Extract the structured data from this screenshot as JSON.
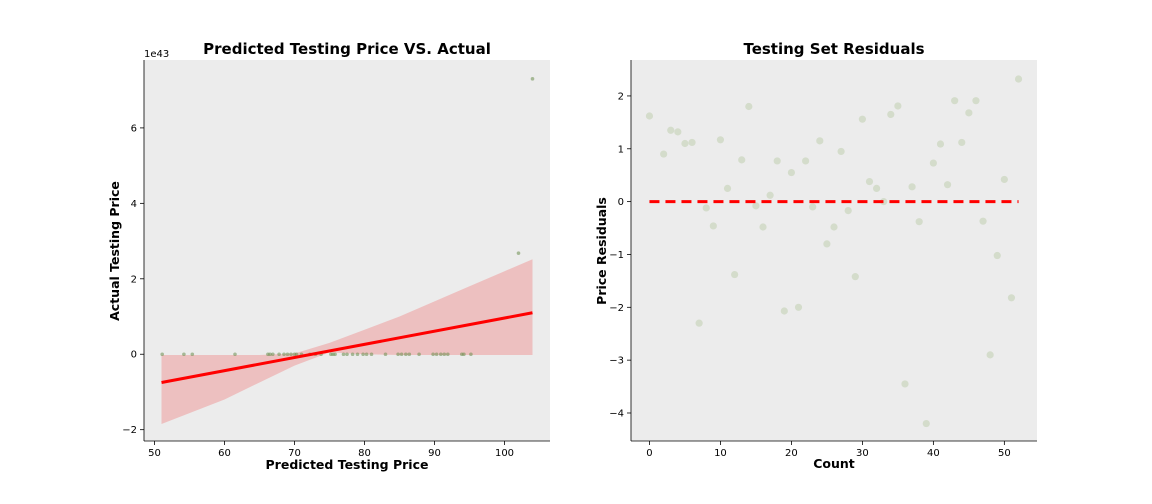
{
  "chart_data": [
    {
      "type": "scatter",
      "title": "Predicted Testing Price VS. Actual",
      "xlabel": "Predicted Testing Price",
      "ylabel": "Actual Testing Price",
      "y_offset_label": "1e43",
      "xlim": [
        48.5,
        106.5
      ],
      "ylim": [
        -2.3,
        7.8
      ],
      "y_scale_note": "values in units of 1e43",
      "xticks": [
        50,
        60,
        70,
        80,
        90,
        100
      ],
      "xtick_labels": [
        "50",
        "60",
        "70",
        "80",
        "90",
        "100"
      ],
      "yticks": [
        -2,
        0,
        2,
        4,
        6
      ],
      "ytick_labels": [
        "−2",
        "0",
        "2",
        "4",
        "6"
      ],
      "grid": false,
      "background": "#ececec",
      "series": [
        {
          "kind": "points",
          "color": "#6b8e4e",
          "x": [
            51.1,
            54.2,
            55.4,
            61.5,
            66.2,
            66.5,
            66.9,
            67.8,
            68.5,
            69.0,
            69.5,
            70.0,
            70.3,
            71.0,
            72.2,
            73.0,
            73.8,
            75.2,
            75.5,
            75.8,
            77.0,
            77.5,
            78.3,
            79.0,
            79.8,
            80.3,
            81.0,
            83.0,
            84.8,
            85.3,
            85.9,
            86.4,
            87.8,
            89.8,
            90.3,
            90.9,
            91.4,
            91.9,
            93.9,
            94.2,
            95.2,
            102.0,
            104.0
          ],
          "y": [
            0,
            0,
            0,
            0,
            0,
            0,
            0,
            0,
            0,
            0,
            0,
            0,
            0,
            0,
            0,
            0,
            0,
            0,
            0,
            0,
            0,
            0,
            0,
            0,
            0,
            0,
            0,
            0,
            0,
            0,
            0,
            0,
            0,
            0,
            0,
            0,
            0,
            0,
            0,
            0,
            0,
            2.68,
            7.3
          ]
        },
        {
          "kind": "regression-line",
          "color": "#ff0000",
          "x": [
            51,
            104
          ],
          "y": [
            -0.75,
            1.1
          ]
        },
        {
          "kind": "confidence-band",
          "color": "#f08080",
          "x": [
            51,
            60,
            65,
            70,
            75,
            80,
            85,
            90,
            95,
            100,
            104
          ],
          "upper": [
            -0.02,
            -0.02,
            -0.02,
            0.02,
            0.3,
            0.65,
            1.0,
            1.4,
            1.8,
            2.2,
            2.52
          ],
          "lower": [
            -1.85,
            -1.2,
            -0.75,
            -0.3,
            0.05,
            0.0,
            -0.02,
            -0.02,
            -0.02,
            -0.02,
            -0.02
          ]
        }
      ]
    },
    {
      "type": "scatter",
      "title": "Testing Set Residuals",
      "xlabel": "Count",
      "ylabel": "Price Residuals",
      "xlim": [
        -2.6,
        54.6
      ],
      "ylim": [
        -4.53,
        2.68
      ],
      "xticks": [
        0,
        10,
        20,
        30,
        40,
        50
      ],
      "xtick_labels": [
        "0",
        "10",
        "20",
        "30",
        "40",
        "50"
      ],
      "yticks": [
        -4,
        -3,
        -2,
        -1,
        0,
        1,
        2
      ],
      "ytick_labels": [
        "−4",
        "−3",
        "−2",
        "−1",
        "0",
        "1",
        "2"
      ],
      "grid": false,
      "background": "#ececec",
      "series": [
        {
          "kind": "points",
          "color": "#d4dccb",
          "x": [
            0,
            2,
            3,
            4,
            5,
            6,
            7,
            8,
            9,
            10,
            11,
            12,
            13,
            14,
            15,
            16,
            17,
            18,
            19,
            20,
            21,
            22,
            23,
            24,
            25,
            26,
            27,
            28,
            29,
            30,
            31,
            32,
            33,
            34,
            35,
            36,
            37,
            38,
            39,
            40,
            41,
            42,
            43,
            44,
            45,
            46,
            47,
            48,
            49,
            50,
            51,
            52
          ],
          "y": [
            1.62,
            0.9,
            1.35,
            1.32,
            1.1,
            1.12,
            -2.3,
            -0.12,
            -0.46,
            1.17,
            0.25,
            -1.38,
            0.79,
            1.8,
            -0.08,
            -0.48,
            0.12,
            0.77,
            -2.07,
            0.55,
            -2.0,
            0.77,
            -0.1,
            1.15,
            -0.8,
            -0.48,
            0.95,
            -0.17,
            -1.42,
            1.56,
            0.38,
            0.25,
            0.0,
            1.65,
            1.81,
            -3.45,
            0.28,
            -0.38,
            -4.2,
            0.73,
            1.09,
            0.32,
            1.91,
            1.12,
            1.68,
            1.91,
            -0.37,
            -2.9,
            -1.02,
            0.42,
            -1.82,
            2.32
          ]
        },
        {
          "kind": "zero-line",
          "color": "#ff0000",
          "x": [
            0,
            52
          ],
          "y": [
            0,
            0
          ]
        }
      ]
    }
  ]
}
